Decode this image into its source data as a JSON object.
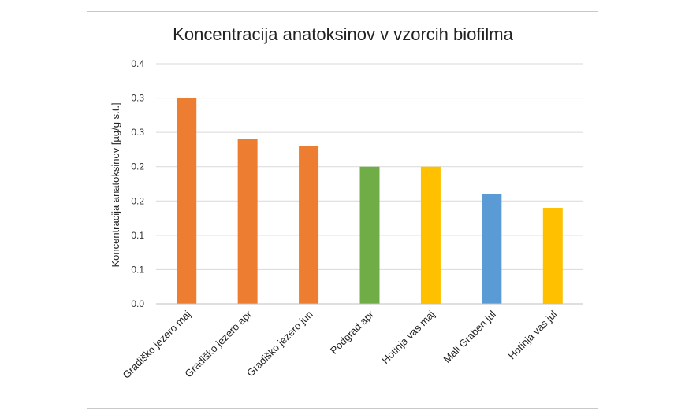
{
  "chart_data": {
    "type": "bar",
    "title": "Koncentracija anatoksinov v vzorcih biofilma",
    "xlabel": "",
    "ylabel": "Koncentracija anatoksinov [µg/g s.t.]",
    "ylim": [
      0,
      0.35
    ],
    "y_ticks": [
      0,
      0.05,
      0.1,
      0.15,
      0.2,
      0.25,
      0.3,
      0.35
    ],
    "y_tick_labels": [
      "0.0",
      "0.1",
      "0.1",
      "0.2",
      "0.2",
      "0.3",
      "0.3",
      "0.4"
    ],
    "categories": [
      "Gradiško jezero maj",
      "Gradiško jezero apr",
      "Gradiško jezero jun",
      "Podgrad apr",
      "Hotinja vas maj",
      "Mali Graben jul",
      "Hotinja vas jul"
    ],
    "values": [
      0.3,
      0.24,
      0.23,
      0.2,
      0.2,
      0.16,
      0.14
    ],
    "colors": [
      "#ED7D31",
      "#ED7D31",
      "#ED7D31",
      "#70AD47",
      "#FFC000",
      "#5B9BD5",
      "#FFC000"
    ],
    "grid": true,
    "legend": "none"
  }
}
